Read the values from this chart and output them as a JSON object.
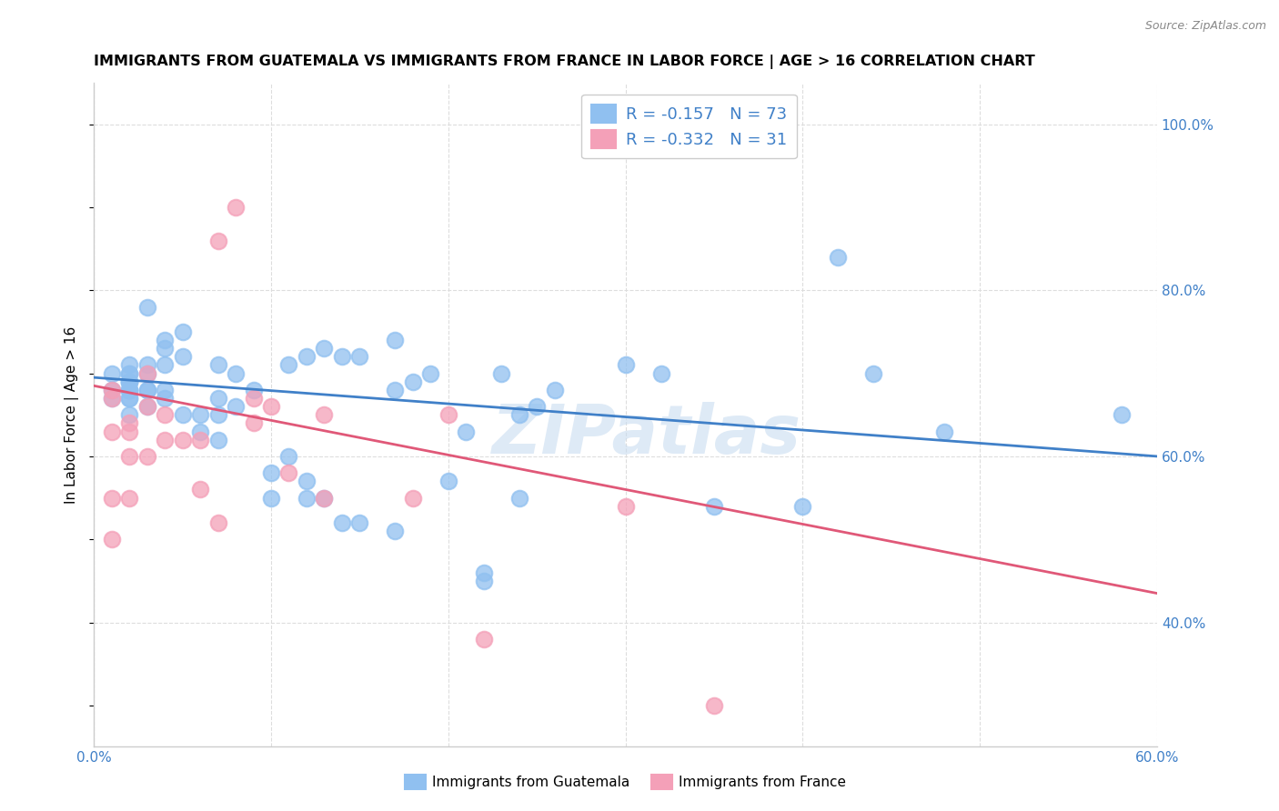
{
  "title": "IMMIGRANTS FROM GUATEMALA VS IMMIGRANTS FROM FRANCE IN LABOR FORCE | AGE > 16 CORRELATION CHART",
  "source": "Source: ZipAtlas.com",
  "ylabel": "In Labor Force | Age > 16",
  "xlim": [
    0.0,
    0.6
  ],
  "ylim": [
    0.25,
    1.05
  ],
  "xticks": [
    0.0,
    0.1,
    0.2,
    0.3,
    0.4,
    0.5,
    0.6
  ],
  "xticklabels": [
    "0.0%",
    "",
    "",
    "",
    "",
    "",
    "60.0%"
  ],
  "yticks_right": [
    0.4,
    0.6,
    0.8,
    1.0
  ],
  "ytickslabels_right": [
    "40.0%",
    "60.0%",
    "80.0%",
    "100.0%"
  ],
  "guatemala_color": "#90C0F0",
  "france_color": "#F4A0B8",
  "guatemala_edge_color": "#90C0F0",
  "france_edge_color": "#F4A0B8",
  "guatemala_line_color": "#4080C8",
  "france_line_color": "#E05878",
  "legend_R_guatemala": "R = -0.157",
  "legend_N_guatemala": "N = 73",
  "legend_R_france": "R = -0.332",
  "legend_N_france": "N = 31",
  "legend_color_blue": "#4080C8",
  "legend_color_pink": "#E05878",
  "watermark": "ZIPatlas",
  "guatemala_scatter_x": [
    0.01,
    0.01,
    0.01,
    0.02,
    0.02,
    0.02,
    0.02,
    0.02,
    0.02,
    0.02,
    0.02,
    0.02,
    0.02,
    0.02,
    0.02,
    0.03,
    0.03,
    0.03,
    0.03,
    0.03,
    0.03,
    0.04,
    0.04,
    0.04,
    0.04,
    0.04,
    0.05,
    0.05,
    0.05,
    0.06,
    0.06,
    0.07,
    0.07,
    0.07,
    0.07,
    0.08,
    0.08,
    0.09,
    0.1,
    0.1,
    0.11,
    0.11,
    0.12,
    0.12,
    0.12,
    0.13,
    0.13,
    0.14,
    0.14,
    0.15,
    0.15,
    0.17,
    0.17,
    0.17,
    0.18,
    0.19,
    0.2,
    0.21,
    0.22,
    0.22,
    0.23,
    0.24,
    0.24,
    0.25,
    0.26,
    0.3,
    0.32,
    0.35,
    0.4,
    0.42,
    0.44,
    0.48,
    0.58
  ],
  "guatemala_scatter_y": [
    0.67,
    0.68,
    0.7,
    0.65,
    0.67,
    0.67,
    0.68,
    0.68,
    0.68,
    0.69,
    0.69,
    0.69,
    0.7,
    0.7,
    0.71,
    0.66,
    0.68,
    0.68,
    0.7,
    0.71,
    0.78,
    0.67,
    0.68,
    0.71,
    0.73,
    0.74,
    0.65,
    0.72,
    0.75,
    0.63,
    0.65,
    0.62,
    0.65,
    0.67,
    0.71,
    0.66,
    0.7,
    0.68,
    0.55,
    0.58,
    0.6,
    0.71,
    0.55,
    0.57,
    0.72,
    0.55,
    0.73,
    0.52,
    0.72,
    0.52,
    0.72,
    0.51,
    0.68,
    0.74,
    0.69,
    0.7,
    0.57,
    0.63,
    0.45,
    0.46,
    0.7,
    0.55,
    0.65,
    0.66,
    0.68,
    0.71,
    0.7,
    0.54,
    0.54,
    0.84,
    0.7,
    0.63,
    0.65
  ],
  "france_scatter_x": [
    0.01,
    0.01,
    0.01,
    0.01,
    0.01,
    0.02,
    0.02,
    0.02,
    0.02,
    0.03,
    0.03,
    0.03,
    0.04,
    0.04,
    0.05,
    0.06,
    0.06,
    0.07,
    0.07,
    0.08,
    0.09,
    0.09,
    0.1,
    0.11,
    0.13,
    0.13,
    0.18,
    0.2,
    0.22,
    0.3,
    0.35
  ],
  "france_scatter_y": [
    0.5,
    0.55,
    0.63,
    0.67,
    0.68,
    0.55,
    0.6,
    0.63,
    0.64,
    0.6,
    0.66,
    0.7,
    0.62,
    0.65,
    0.62,
    0.56,
    0.62,
    0.52,
    0.86,
    0.9,
    0.64,
    0.67,
    0.66,
    0.58,
    0.55,
    0.65,
    0.55,
    0.65,
    0.38,
    0.54,
    0.3
  ],
  "guatemala_trend_x": [
    0.0,
    0.6
  ],
  "guatemala_trend_y": [
    0.695,
    0.6
  ],
  "france_trend_x": [
    0.0,
    0.6
  ],
  "france_trend_y": [
    0.685,
    0.435
  ],
  "grid_color": "#DDDDDD",
  "spine_color": "#CCCCCC"
}
